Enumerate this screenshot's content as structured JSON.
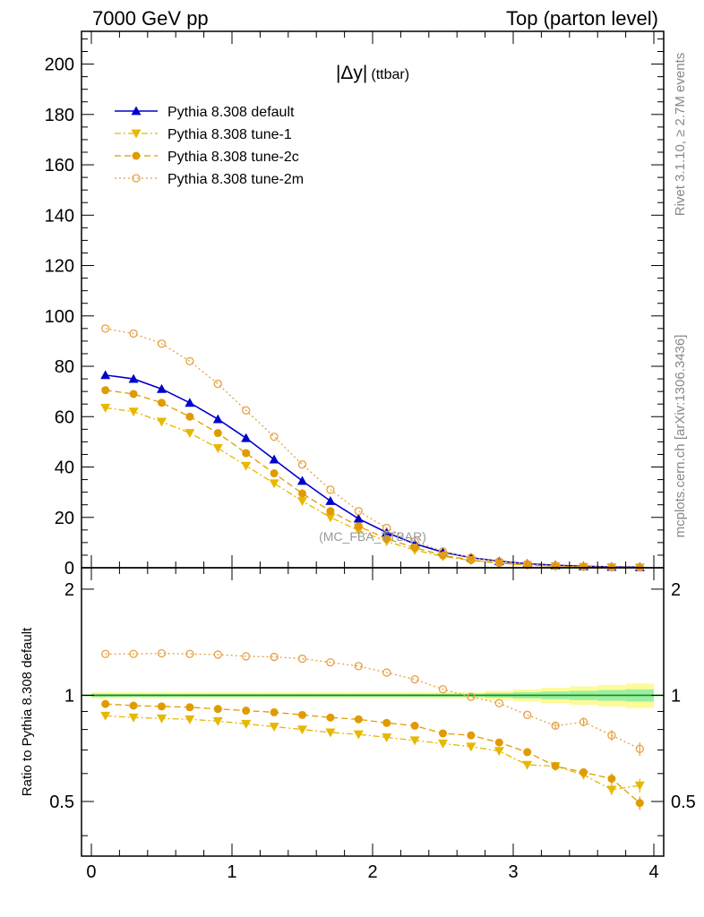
{
  "header": {
    "left": "7000 GeV pp",
    "right": "Top (parton level)"
  },
  "side": {
    "rivet": "Rivet 3.1.10, ≥ 2.7M events",
    "mcplots": "mcplots.cern.ch [arXiv:1306.3436]"
  },
  "chart_data": {
    "type": "line",
    "title": "|Δy| (ttbar)",
    "title_main": "|Δy|",
    "title_sub": "(ttbar)",
    "watermark": "(MC_FBA_TTBAR)",
    "x": [
      0.1,
      0.3,
      0.5,
      0.7,
      0.9,
      1.1,
      1.3,
      1.5,
      1.7,
      1.9,
      2.1,
      2.3,
      2.5,
      2.7,
      2.9,
      3.1,
      3.3,
      3.5,
      3.7,
      3.9
    ],
    "xlim": [
      -0.07,
      4.07
    ],
    "x_ticks": [
      "0",
      "1",
      "2",
      "3",
      "4"
    ],
    "main": {
      "ylim": [
        0,
        213
      ],
      "y_ticks": [
        "0",
        "20",
        "40",
        "60",
        "80",
        "100",
        "120",
        "140",
        "160",
        "180",
        "200"
      ]
    },
    "ratio": {
      "ylabel": "Ratio to Pythia 8.308 default",
      "ylim": [
        0.35,
        2.3
      ],
      "y_ticks": [
        "0.5",
        "1",
        "2"
      ],
      "band_outer": [
        0.02,
        0.02,
        0.02,
        0.02,
        0.02,
        0.02,
        0.02,
        0.02,
        0.02,
        0.02,
        0.02,
        0.02,
        0.02,
        0.02,
        0.03,
        0.04,
        0.05,
        0.06,
        0.07,
        0.08
      ],
      "band_inner": [
        0.01,
        0.01,
        0.01,
        0.01,
        0.01,
        0.01,
        0.01,
        0.01,
        0.01,
        0.01,
        0.01,
        0.01,
        0.01,
        0.01,
        0.015,
        0.02,
        0.025,
        0.03,
        0.035,
        0.04
      ]
    },
    "series": [
      {
        "name": "Pythia 8.308 default",
        "color": "#0000cc",
        "marker": "triangle-up",
        "dash": "solid",
        "values": [
          76.5,
          75,
          71,
          65.5,
          59,
          51.5,
          43,
          34.5,
          26.5,
          19.5,
          14,
          9.5,
          6.2,
          4,
          2.6,
          1.6,
          1,
          0.6,
          0.35,
          0.25
        ],
        "ratio": [
          1,
          1,
          1,
          1,
          1,
          1,
          1,
          1,
          1,
          1,
          1,
          1,
          1,
          1,
          1,
          1,
          1,
          1,
          1,
          1
        ]
      },
      {
        "name": "Pythia 8.308 tune-1",
        "color": "#e6b800",
        "marker": "triangle-down",
        "dash": "dashdot",
        "values": [
          63.5,
          62,
          58,
          53.5,
          47.5,
          40.5,
          33.5,
          26.5,
          20,
          14.8,
          10.5,
          7,
          4.5,
          2.9,
          1.8,
          1.0,
          0.63,
          0.36,
          0.19,
          0.14
        ],
        "ratio": [
          0.875,
          0.865,
          0.86,
          0.855,
          0.845,
          0.83,
          0.815,
          0.8,
          0.785,
          0.775,
          0.76,
          0.745,
          0.73,
          0.715,
          0.695,
          0.635,
          0.63,
          0.595,
          0.54,
          0.555
        ]
      },
      {
        "name": "Pythia 8.308 tune-2c",
        "color": "#e09b00",
        "marker": "circle",
        "dash": "dashed",
        "values": [
          70.5,
          69,
          65.5,
          60,
          53.5,
          45.5,
          37.5,
          29.5,
          22.5,
          16.5,
          11.5,
          8,
          4.9,
          3.1,
          1.9,
          1.1,
          0.63,
          0.37,
          0.21,
          0.13
        ],
        "ratio": [
          0.945,
          0.935,
          0.93,
          0.925,
          0.915,
          0.905,
          0.895,
          0.88,
          0.865,
          0.855,
          0.835,
          0.82,
          0.78,
          0.77,
          0.735,
          0.69,
          0.63,
          0.605,
          0.58,
          0.495
        ]
      },
      {
        "name": "Pythia 8.308 tune-2m",
        "color": "#e8a040",
        "marker": "circle-open",
        "dash": "dotted",
        "values": [
          95,
          93,
          89,
          82,
          73,
          62.5,
          52,
          41,
          31,
          22.5,
          15.8,
          10.5,
          6.5,
          4,
          2.5,
          1.5,
          0.82,
          0.5,
          0.27,
          0.17
        ],
        "ratio": [
          1.31,
          1.31,
          1.315,
          1.31,
          1.305,
          1.29,
          1.285,
          1.27,
          1.24,
          1.21,
          1.16,
          1.11,
          1.04,
          0.99,
          0.95,
          0.88,
          0.82,
          0.84,
          0.77,
          0.705
        ]
      }
    ]
  }
}
